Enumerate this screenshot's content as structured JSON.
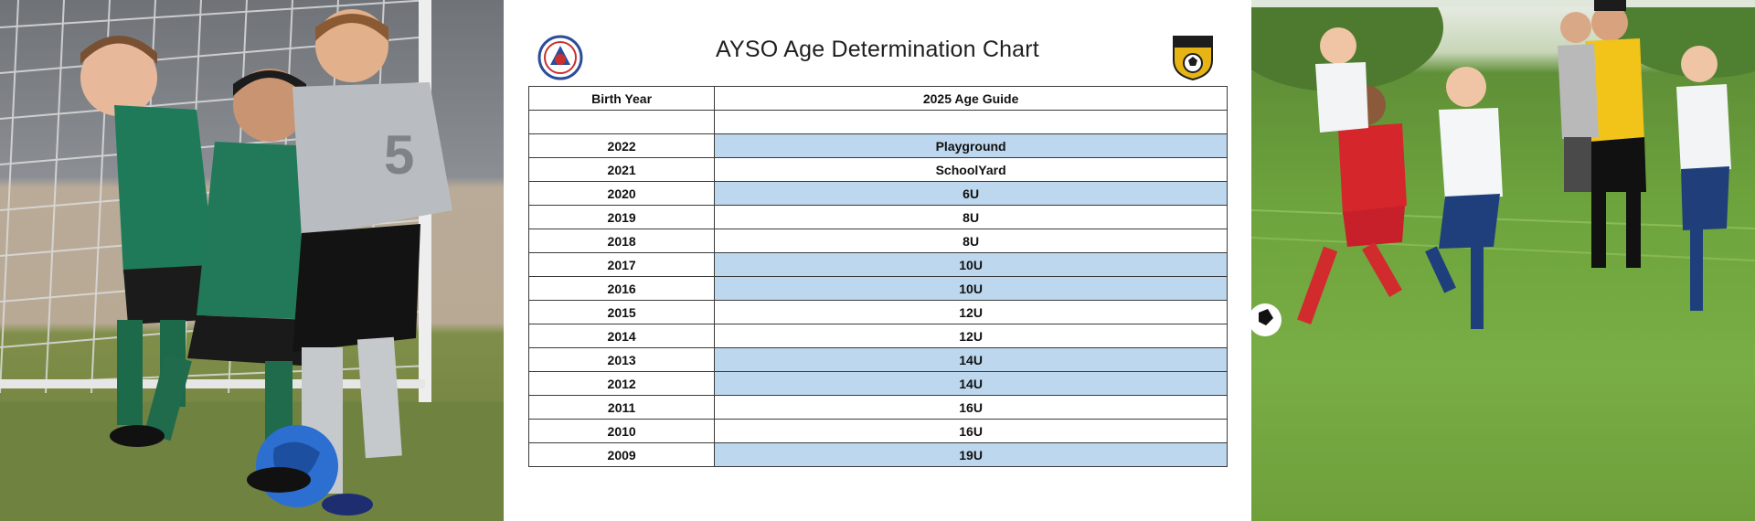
{
  "document": {
    "title": "AYSO Age Determination Chart",
    "table": {
      "headers": [
        "Birth Year",
        "2025 Age Guide"
      ],
      "rows": [
        {
          "year": "",
          "age": "",
          "shaded": false
        },
        {
          "year": "2022",
          "age": "Playground",
          "shaded": true
        },
        {
          "year": "2021",
          "age": "SchoolYard",
          "shaded": false
        },
        {
          "year": "2020",
          "age": "6U",
          "shaded": true
        },
        {
          "year": "2019",
          "age": "8U",
          "shaded": false
        },
        {
          "year": "2018",
          "age": "8U",
          "shaded": false
        },
        {
          "year": "2017",
          "age": "10U",
          "shaded": true
        },
        {
          "year": "2016",
          "age": "10U",
          "shaded": true
        },
        {
          "year": "2015",
          "age": "12U",
          "shaded": false
        },
        {
          "year": "2014",
          "age": "12U",
          "shaded": false
        },
        {
          "year": "2013",
          "age": "14U",
          "shaded": true
        },
        {
          "year": "2012",
          "age": "14U",
          "shaded": true
        },
        {
          "year": "2011",
          "age": "16U",
          "shaded": false
        },
        {
          "year": "2010",
          "age": "16U",
          "shaded": false
        },
        {
          "year": "2009",
          "age": "19U",
          "shaded": true
        }
      ]
    },
    "colors": {
      "shade": "#bdd7ee",
      "border": "#3a3a3a",
      "ayso_blue": "#2a4d9b",
      "ayso_red": "#c8312f",
      "badge_gold": "#e7b416"
    }
  },
  "photos": {
    "left": {
      "icon": "youth-soccer-photo"
    },
    "right": {
      "icon": "girls-soccer-photo"
    }
  }
}
